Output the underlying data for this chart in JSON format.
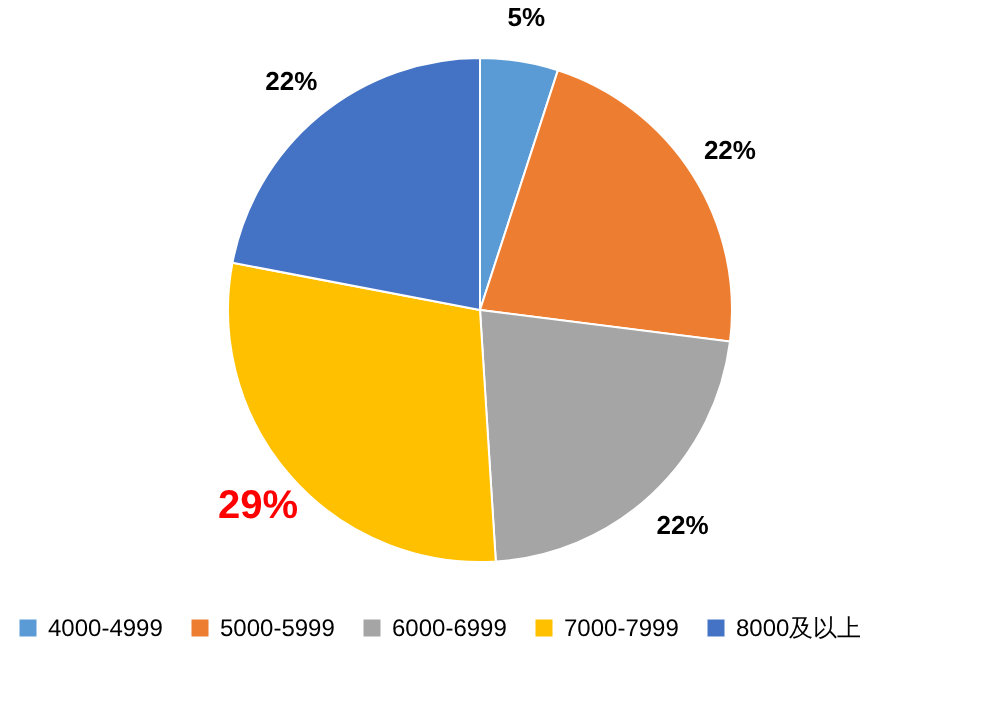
{
  "chart_data": {
    "type": "pie",
    "categories": [
      "4000-4999",
      "5000-5999",
      "6000-6999",
      "7000-7999",
      "8000及以上"
    ],
    "values": [
      5,
      22,
      22,
      29,
      22
    ],
    "colors": [
      "#5b9bd5",
      "#ed7d31",
      "#a5a5a5",
      "#ffc000",
      "#4472c4"
    ],
    "value_labels": [
      "5%",
      "22%",
      "22%",
      "29%",
      "22%"
    ],
    "legend": "bottom"
  }
}
